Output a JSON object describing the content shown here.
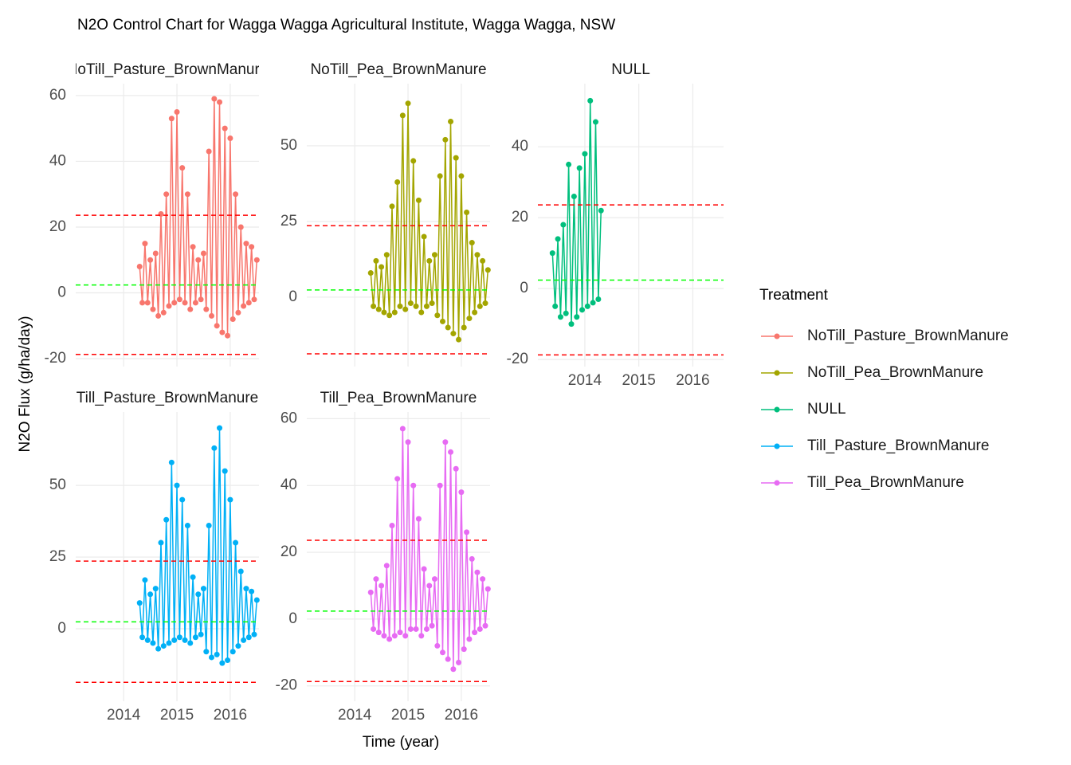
{
  "title": "N2O Control Chart for Wagga Wagga Agricultural Institute, Wagga Wagga, NSW",
  "x_label": "Time (year)",
  "y_label": "N2O Flux (g/ha/day)",
  "legend_title": "Treatment",
  "limit_color": "#FF0000",
  "center_color": "#00FF00",
  "grid": true,
  "chart_data": [
    {
      "type": "line",
      "title": "NoTill_Pasture_BrownManure",
      "show_x_labels": false,
      "xlim": [
        2013.1,
        2016.54
      ],
      "xticks": [
        2014,
        2015,
        2016
      ],
      "ylim": [
        -22.4,
        63.6
      ],
      "yticks": [
        -20,
        0,
        20,
        40,
        60
      ],
      "upper_limit": 23.6,
      "center_line": 2.4,
      "lower_limit": -18.7,
      "x": [
        2014.3,
        2014.35,
        2014.4,
        2014.45,
        2014.5,
        2014.55,
        2014.6,
        2014.65,
        2014.7,
        2014.75,
        2014.8,
        2014.85,
        2014.9,
        2014.95,
        2015.0,
        2015.05,
        2015.1,
        2015.15,
        2015.2,
        2015.25,
        2015.3,
        2015.35,
        2015.4,
        2015.45,
        2015.5,
        2015.55,
        2015.6,
        2015.65,
        2015.7,
        2015.75,
        2015.8,
        2015.85,
        2015.9,
        2015.95,
        2016.0,
        2016.05,
        2016.1,
        2016.15,
        2016.2,
        2016.25,
        2016.3,
        2016.35,
        2016.4,
        2016.45,
        2016.5
      ],
      "series": [
        {
          "name": "NoTill_Pasture_BrownManure",
          "color": "#F8766D",
          "values": [
            8,
            -3,
            15,
            -3,
            10,
            -5,
            12,
            -7,
            24,
            -6,
            30,
            -4,
            53,
            -3,
            55,
            -2,
            38,
            -3,
            30,
            -5,
            14,
            -3,
            10,
            -2,
            12,
            -5,
            43,
            -7,
            59,
            -10,
            58,
            -12,
            50,
            -13,
            47,
            -8,
            30,
            -6,
            20,
            -4,
            15,
            -3,
            14,
            -2,
            10
          ]
        }
      ]
    },
    {
      "type": "line",
      "title": "NoTill_Pea_BrownManure",
      "show_x_labels": false,
      "xlim": [
        2013.1,
        2016.54
      ],
      "xticks": [
        2014,
        2015,
        2016
      ],
      "ylim": [
        -22.9,
        70.5
      ],
      "yticks": [
        0,
        25,
        50
      ],
      "upper_limit": 23.6,
      "center_line": 2.4,
      "lower_limit": -18.7,
      "x": [
        2014.3,
        2014.35,
        2014.4,
        2014.45,
        2014.5,
        2014.55,
        2014.6,
        2014.65,
        2014.7,
        2014.75,
        2014.8,
        2014.85,
        2014.9,
        2014.95,
        2015.0,
        2015.05,
        2015.1,
        2015.15,
        2015.2,
        2015.25,
        2015.3,
        2015.35,
        2015.4,
        2015.45,
        2015.5,
        2015.55,
        2015.6,
        2015.65,
        2015.7,
        2015.75,
        2015.8,
        2015.85,
        2015.9,
        2015.95,
        2016.0,
        2016.05,
        2016.1,
        2016.15,
        2016.2,
        2016.25,
        2016.3,
        2016.35,
        2016.4,
        2016.45,
        2016.5
      ],
      "series": [
        {
          "name": "NoTill_Pea_BrownManure",
          "color": "#A3A500",
          "values": [
            8,
            -3,
            12,
            -4,
            10,
            -5,
            14,
            -6,
            30,
            -5,
            38,
            -3,
            60,
            -4,
            64,
            -2,
            45,
            -3,
            32,
            -5,
            20,
            -3,
            12,
            -2,
            14,
            -6,
            40,
            -8,
            52,
            -10,
            58,
            -12,
            46,
            -14,
            40,
            -10,
            28,
            -7,
            18,
            -5,
            14,
            -3,
            12,
            -2,
            9
          ]
        }
      ]
    },
    {
      "type": "line",
      "title": "NULL",
      "show_x_labels": true,
      "xlim": [
        2013.13,
        2016.57
      ],
      "xticks": [
        2014,
        2015,
        2016
      ],
      "ylim": [
        -22,
        57.8
      ],
      "yticks": [
        -20,
        0,
        20,
        40
      ],
      "upper_limit": 23.6,
      "center_line": 2.4,
      "lower_limit": -18.7,
      "x": [
        2013.4,
        2013.45,
        2013.5,
        2013.55,
        2013.6,
        2013.65,
        2013.7,
        2013.75,
        2013.8,
        2013.85,
        2013.9,
        2013.95,
        2014.0,
        2014.05,
        2014.1,
        2014.15,
        2014.2,
        2014.25,
        2014.3
      ],
      "series": [
        {
          "name": "NULL",
          "color": "#00BF7D",
          "values": [
            10,
            -5,
            14,
            -8,
            18,
            -7,
            35,
            -10,
            26,
            -8,
            34,
            -6,
            38,
            -5,
            53,
            -4,
            47,
            -3,
            22
          ]
        }
      ]
    },
    {
      "type": "line",
      "title": "Till_Pasture_BrownManure",
      "show_x_labels": true,
      "xlim": [
        2013.1,
        2016.54
      ],
      "xticks": [
        2014,
        2015,
        2016
      ],
      "ylim": [
        -25.3,
        75.6
      ],
      "yticks": [
        0,
        25,
        50
      ],
      "upper_limit": 23.6,
      "center_line": 2.4,
      "lower_limit": -18.7,
      "x": [
        2014.3,
        2014.35,
        2014.4,
        2014.45,
        2014.5,
        2014.55,
        2014.6,
        2014.65,
        2014.7,
        2014.75,
        2014.8,
        2014.85,
        2014.9,
        2014.95,
        2015.0,
        2015.05,
        2015.1,
        2015.15,
        2015.2,
        2015.25,
        2015.3,
        2015.35,
        2015.4,
        2015.45,
        2015.5,
        2015.55,
        2015.6,
        2015.65,
        2015.7,
        2015.75,
        2015.8,
        2015.85,
        2015.9,
        2015.95,
        2016.0,
        2016.05,
        2016.1,
        2016.15,
        2016.2,
        2016.25,
        2016.3,
        2016.35,
        2016.4,
        2016.45,
        2016.5
      ],
      "series": [
        {
          "name": "Till_Pasture_BrownManure",
          "color": "#00B0F6",
          "values": [
            9,
            -3,
            17,
            -4,
            12,
            -5,
            14,
            -7,
            30,
            -6,
            38,
            -5,
            58,
            -4,
            50,
            -3,
            45,
            -4,
            36,
            -5,
            18,
            -3,
            12,
            -2,
            14,
            -8,
            36,
            -10,
            63,
            -9,
            70,
            -12,
            55,
            -11,
            45,
            -8,
            30,
            -6,
            20,
            -4,
            14,
            -3,
            13,
            -2,
            10
          ]
        }
      ]
    },
    {
      "type": "line",
      "title": "Till_Pea_BrownManure",
      "show_x_labels": true,
      "xlim": [
        2013.1,
        2016.54
      ],
      "xticks": [
        2014,
        2015,
        2016
      ],
      "ylim": [
        -24.6,
        62
      ],
      "yticks": [
        -20,
        0,
        20,
        40,
        60
      ],
      "upper_limit": 23.6,
      "center_line": 2.4,
      "lower_limit": -18.7,
      "x": [
        2014.3,
        2014.35,
        2014.4,
        2014.45,
        2014.5,
        2014.55,
        2014.6,
        2014.65,
        2014.7,
        2014.75,
        2014.8,
        2014.85,
        2014.9,
        2014.95,
        2015.0,
        2015.05,
        2015.1,
        2015.15,
        2015.2,
        2015.25,
        2015.3,
        2015.35,
        2015.4,
        2015.45,
        2015.5,
        2015.55,
        2015.6,
        2015.65,
        2015.7,
        2015.75,
        2015.8,
        2015.85,
        2015.9,
        2015.95,
        2016.0,
        2016.05,
        2016.1,
        2016.15,
        2016.2,
        2016.25,
        2016.3,
        2016.35,
        2016.4,
        2016.45,
        2016.5
      ],
      "series": [
        {
          "name": "Till_Pea_BrownManure",
          "color": "#E76BF3",
          "values": [
            8,
            -3,
            12,
            -4,
            10,
            -5,
            16,
            -6,
            28,
            -5,
            42,
            -4,
            57,
            -5,
            53,
            -3,
            40,
            -3,
            30,
            -5,
            15,
            -3,
            10,
            -2,
            12,
            -8,
            40,
            -10,
            53,
            -12,
            50,
            -15,
            45,
            -13,
            38,
            -9,
            26,
            -6,
            18,
            -4,
            14,
            -3,
            12,
            -2,
            9
          ]
        }
      ]
    }
  ]
}
